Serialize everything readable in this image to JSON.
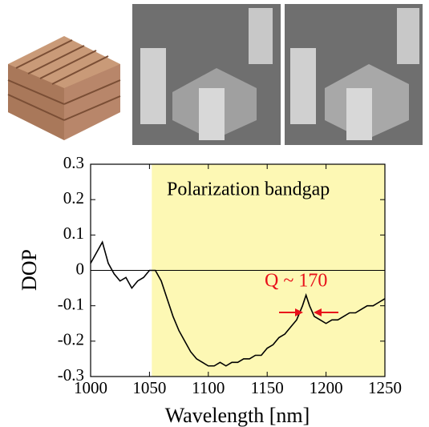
{
  "chart_data": {
    "type": "line",
    "xlabel": "Wavelength [nm]",
    "ylabel": "DOP",
    "annotations": [
      "Polarization bandgap",
      "Q ~ 170"
    ],
    "shaded_region": [
      1052,
      1250
    ],
    "shaded_color": "#fdf8b4",
    "zero_line": true,
    "xlim": [
      1000,
      1250
    ],
    "ylim": [
      -0.3,
      0.3
    ],
    "xticks": [
      1000,
      1050,
      1100,
      1150,
      1200,
      1250
    ],
    "yticks": [
      0.3,
      0.2,
      0.1,
      0,
      -0.1,
      -0.2,
      -0.3
    ],
    "series": [
      {
        "color": "#000000",
        "x": [
          1000,
          1005,
          1010,
          1015,
          1020,
          1025,
          1030,
          1035,
          1040,
          1045,
          1050,
          1055,
          1060,
          1065,
          1070,
          1075,
          1080,
          1085,
          1090,
          1095,
          1100,
          1105,
          1110,
          1115,
          1120,
          1125,
          1130,
          1135,
          1140,
          1145,
          1150,
          1155,
          1160,
          1165,
          1170,
          1175,
          1180,
          1183,
          1186,
          1190,
          1195,
          1200,
          1205,
          1210,
          1215,
          1220,
          1225,
          1230,
          1235,
          1240,
          1245,
          1250
        ],
        "values": [
          0.02,
          0.05,
          0.08,
          0.02,
          -0.01,
          -0.03,
          -0.02,
          -0.05,
          -0.03,
          -0.02,
          0.0,
          0.0,
          -0.03,
          -0.08,
          -0.13,
          -0.17,
          -0.2,
          -0.23,
          -0.25,
          -0.26,
          -0.27,
          -0.27,
          -0.26,
          -0.27,
          -0.26,
          -0.26,
          -0.25,
          -0.25,
          -0.24,
          -0.24,
          -0.22,
          -0.21,
          -0.19,
          -0.18,
          -0.16,
          -0.14,
          -0.1,
          -0.07,
          -0.1,
          -0.13,
          -0.14,
          -0.15,
          -0.14,
          -0.14,
          -0.13,
          -0.12,
          -0.12,
          -0.11,
          -0.1,
          -0.1,
          -0.09,
          -0.08
        ]
      }
    ]
  }
}
